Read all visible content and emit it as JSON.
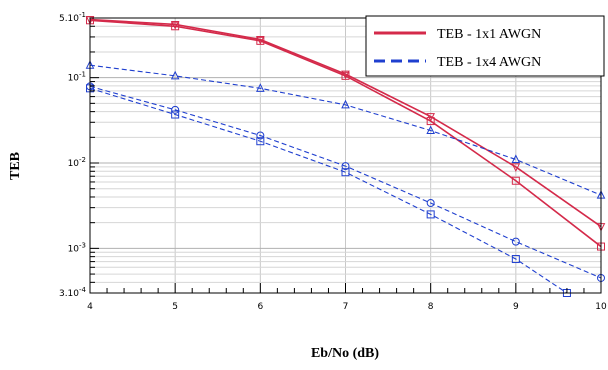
{
  "chart_data": {
    "type": "line",
    "xlabel": "Eb/No (dB)",
    "ylabel": "TEB",
    "xlim": [
      4,
      10
    ],
    "ylim": [
      0.0003,
      0.5
    ],
    "y_scale": "log",
    "x_ticks": [
      "4",
      "5",
      "6",
      "7",
      "8",
      "9",
      "10"
    ],
    "y_ticks": [
      {
        "value": 0.5,
        "base": "5.10",
        "exp": "-1"
      },
      {
        "value": 0.1,
        "base": "10",
        "exp": "-1"
      },
      {
        "value": 0.01,
        "base": "10",
        "exp": "-2"
      },
      {
        "value": 0.001,
        "base": "10",
        "exp": "-3"
      },
      {
        "value": 0.0003,
        "base": "3.10",
        "exp": "-4"
      }
    ],
    "grid": true,
    "legend_position": "top-right",
    "legend": [
      {
        "label": "TEB - 1x1 AWGN",
        "color": "#d42a4a",
        "style": "solid"
      },
      {
        "label": "TEB - 1x4 AWGN",
        "color": "#1f3fcf",
        "style": "dashed"
      }
    ],
    "series": [
      {
        "name": "TEB - 1x1 AWGN",
        "group": 0,
        "color": "#d42a4a",
        "style": "solid",
        "marker": "triangle-down",
        "x": [
          4,
          5,
          6,
          7,
          8,
          9,
          10
        ],
        "y": [
          0.48,
          0.42,
          0.28,
          0.11,
          0.035,
          0.009,
          0.0018
        ]
      },
      {
        "name": "TEB - 1x1 AWGN",
        "group": 0,
        "color": "#d42a4a",
        "style": "solid",
        "marker": "square",
        "x": [
          4,
          5,
          6,
          7,
          8,
          9,
          10
        ],
        "y": [
          0.47,
          0.4,
          0.27,
          0.105,
          0.031,
          0.0062,
          0.00105
        ]
      },
      {
        "name": "TEB - 1x4 AWGN",
        "group": 1,
        "color": "#1f3fcf",
        "style": "dashed",
        "marker": "triangle-up",
        "x": [
          4,
          5,
          6,
          7,
          8,
          9,
          10
        ],
        "y": [
          0.14,
          0.105,
          0.075,
          0.048,
          0.024,
          0.011,
          0.0042
        ]
      },
      {
        "name": "TEB - 1x4 AWGN",
        "group": 1,
        "color": "#1f3fcf",
        "style": "dashed",
        "marker": "circle",
        "x": [
          4,
          5,
          6,
          7,
          8,
          9,
          10
        ],
        "y": [
          0.079,
          0.042,
          0.021,
          0.0092,
          0.0034,
          0.0012,
          0.00045
        ]
      },
      {
        "name": "TEB - 1x4 AWGN",
        "group": 1,
        "color": "#1f3fcf",
        "style": "dashed",
        "marker": "square",
        "x": [
          4,
          5,
          6,
          7,
          8,
          9,
          9.6
        ],
        "y": [
          0.075,
          0.037,
          0.018,
          0.0078,
          0.0025,
          0.00075,
          0.0003
        ]
      }
    ]
  }
}
